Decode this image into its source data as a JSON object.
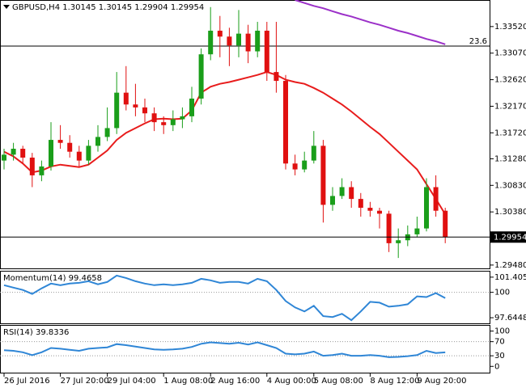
{
  "chart_data": [
    {
      "type": "candlestick",
      "title": "GBPUSD,H4  1.30145 1.30145 1.29904 1.29954",
      "categories": [
        "26 Jul 2016",
        null,
        null,
        null,
        null,
        null,
        "27 Jul 20:00",
        null,
        null,
        null,
        null,
        "29 Jul 04:00",
        null,
        null,
        null,
        null,
        null,
        "1 Aug 08:00",
        null,
        null,
        null,
        null,
        "2 Aug 16:00",
        null,
        null,
        null,
        null,
        null,
        "4 Aug 00:00",
        null,
        null,
        null,
        null,
        "5 Aug 08:00",
        null,
        null,
        null,
        null,
        null,
        "8 Aug 12:00",
        null,
        null,
        null,
        null,
        "9 Aug 20:00",
        null,
        null,
        null
      ],
      "open": [
        1.3125,
        1.3135,
        1.3145,
        1.313,
        1.31,
        1.3115,
        1.316,
        1.3155,
        1.314,
        1.3125,
        1.315,
        1.3165,
        1.318,
        1.324,
        1.322,
        1.3215,
        1.3205,
        1.319,
        1.3185,
        1.3195,
        1.32,
        1.323,
        1.3305,
        1.3345,
        1.3335,
        1.332,
        1.334,
        1.331,
        1.3345,
        1.3275,
        1.326,
        1.312,
        1.311,
        1.3125,
        1.315,
        1.305,
        1.3065,
        1.308,
        1.306,
        1.3045,
        1.304,
        1.3035,
        1.2985,
        1.299,
        1.3,
        1.301,
        1.308,
        1.304
      ],
      "high": [
        1.3145,
        1.3155,
        1.315,
        1.3138,
        1.3125,
        1.319,
        1.3185,
        1.3168,
        1.315,
        1.316,
        1.3185,
        1.3215,
        1.3275,
        1.3285,
        1.3255,
        1.323,
        1.3215,
        1.32,
        1.321,
        1.3215,
        1.325,
        1.3315,
        1.3385,
        1.337,
        1.335,
        1.338,
        1.3355,
        1.336,
        1.336,
        1.336,
        1.327,
        1.3135,
        1.314,
        1.3175,
        1.316,
        1.308,
        1.3095,
        1.309,
        1.307,
        1.3055,
        1.3045,
        1.304,
        1.301,
        1.3015,
        1.303,
        1.3095,
        1.31,
        1.3045
      ],
      "low": [
        1.311,
        1.3125,
        1.312,
        1.308,
        1.309,
        1.3108,
        1.3145,
        1.313,
        1.3115,
        1.3118,
        1.314,
        1.3158,
        1.317,
        1.321,
        1.32,
        1.319,
        1.3175,
        1.317,
        1.3175,
        1.318,
        1.319,
        1.322,
        1.3295,
        1.33,
        1.3285,
        1.33,
        1.329,
        1.33,
        1.326,
        1.324,
        1.311,
        1.31,
        1.3105,
        1.312,
        1.302,
        1.304,
        1.306,
        1.3045,
        1.303,
        1.303,
        1.301,
        1.297,
        1.296,
        1.298,
        1.2995,
        1.3005,
        1.303,
        1.2985
      ],
      "close": [
        1.3135,
        1.3145,
        1.313,
        1.31,
        1.3115,
        1.316,
        1.3155,
        1.314,
        1.3125,
        1.315,
        1.3165,
        1.318,
        1.324,
        1.322,
        1.3215,
        1.3205,
        1.319,
        1.3185,
        1.3195,
        1.32,
        1.323,
        1.3305,
        1.3345,
        1.3335,
        1.332,
        1.334,
        1.331,
        1.3345,
        1.3275,
        1.326,
        1.312,
        1.311,
        1.3125,
        1.315,
        1.305,
        1.3065,
        1.308,
        1.306,
        1.3045,
        1.304,
        1.3035,
        1.2985,
        1.299,
        1.3,
        1.301,
        1.308,
        1.304,
        1.29954
      ],
      "up_color": "#1a9e1a",
      "down_color": "#e01010",
      "overlays": [
        {
          "color": "#e81c1c",
          "values": [
            1.314,
            1.3132,
            1.312,
            1.3105,
            1.3108,
            1.3115,
            1.3118,
            1.3116,
            1.3114,
            1.3118,
            1.313,
            1.3142,
            1.316,
            1.3172,
            1.318,
            1.3188,
            1.3195,
            1.3196,
            1.3195,
            1.3196,
            1.321,
            1.324,
            1.325,
            1.3255,
            1.3258,
            1.3262,
            1.3266,
            1.327,
            1.3275,
            1.327,
            1.3262,
            1.3258,
            1.3255,
            1.3248,
            1.324,
            1.323,
            1.322,
            1.3208,
            1.3195,
            1.3182,
            1.317,
            1.3155,
            1.314,
            1.3125,
            1.311,
            1.3085,
            1.306,
            1.3034
          ]
        },
        {
          "color": "#9b30c8",
          "values": [
            null,
            null,
            null,
            null,
            null,
            null,
            null,
            null,
            null,
            null,
            null,
            null,
            null,
            null,
            null,
            null,
            null,
            null,
            null,
            null,
            null,
            null,
            null,
            null,
            null,
            null,
            null,
            null,
            null,
            null,
            null,
            1.3397,
            1.3392,
            1.3387,
            1.3383,
            1.3378,
            1.3373,
            1.3369,
            1.3364,
            1.3359,
            1.3355,
            1.335,
            1.3345,
            1.3341,
            1.3336,
            1.3331,
            1.3327,
            1.3322
          ]
        }
      ],
      "fib_line": {
        "price": 1.3319,
        "level": 23.6
      },
      "last_price": 1.29954,
      "ylim": [
        1.2941,
        1.3397
      ],
      "yticks": [
        {
          "value": 1.3352,
          "label": "1.33520"
        },
        {
          "value": 1.3307,
          "label": "1.33070"
        },
        {
          "value": 1.3262,
          "label": "1.32620"
        },
        {
          "value": 1.3217,
          "label": "1.32170"
        },
        {
          "value": 1.3172,
          "label": "1.31720"
        },
        {
          "value": 1.3128,
          "label": "1.31280"
        },
        {
          "value": 1.3083,
          "label": "1.30830"
        },
        {
          "value": 1.3038,
          "label": "1.30380"
        },
        {
          "value": 1.2948,
          "label": "1.29480"
        }
      ]
    },
    {
      "type": "line",
      "title": "Momentum(14) 99.4658",
      "color": "#2f86d6",
      "values": [
        100.66,
        100.44,
        100.22,
        99.85,
        100.37,
        100.81,
        100.66,
        100.81,
        100.88,
        101.03,
        100.74,
        100.96,
        101.55,
        101.33,
        101.03,
        100.81,
        100.66,
        100.74,
        100.66,
        100.74,
        100.88,
        101.25,
        101.11,
        100.88,
        100.96,
        100.96,
        100.81,
        101.25,
        101.03,
        100.22,
        99.19,
        98.6,
        98.23,
        98.75,
        97.79,
        97.71,
        98.01,
        97.42,
        98.23,
        99.12,
        99.04,
        98.67,
        98.75,
        98.89,
        99.63,
        99.56,
        99.93,
        99.4658
      ],
      "levels": [
        100
      ],
      "ylim": [
        97.05,
        101.92
      ],
      "yticks": [
        101.4053,
        100,
        97.6448
      ]
    },
    {
      "type": "line",
      "title": "RSI(14) 39.8336",
      "color": "#2f86d6",
      "values": [
        46,
        44,
        40,
        32,
        40,
        52,
        50,
        47,
        44,
        50,
        52,
        54,
        63,
        60,
        56,
        52,
        48,
        47,
        48,
        50,
        55,
        64,
        68,
        66,
        64,
        67,
        62,
        68,
        60,
        52,
        36,
        34,
        36,
        42,
        30,
        32,
        36,
        30,
        30,
        32,
        30,
        26,
        27,
        29,
        32,
        44,
        38,
        39.8336
      ],
      "levels": [
        70,
        30
      ],
      "ylim": [
        -20,
        115
      ],
      "yticks": [
        100,
        70,
        30,
        0
      ]
    }
  ]
}
